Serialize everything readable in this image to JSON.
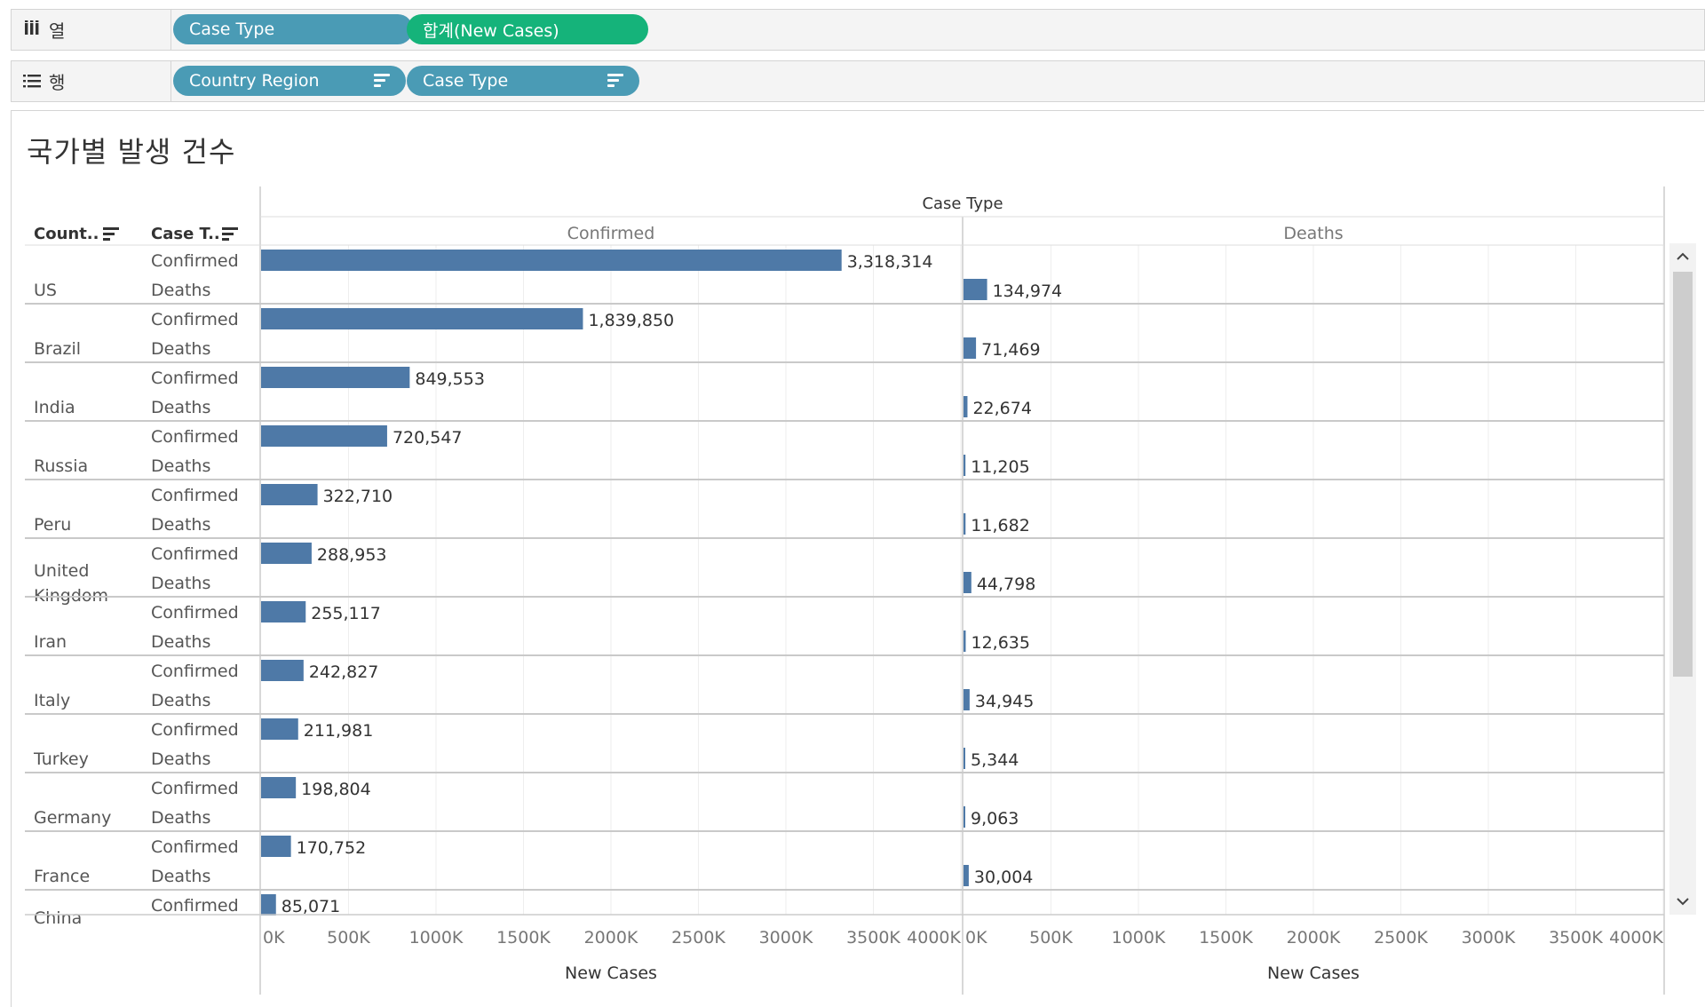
{
  "shelves": {
    "columns": {
      "label": "열",
      "pills": [
        "Case Type",
        "합계(New Cases)"
      ]
    },
    "rows": {
      "label": "행",
      "pills": [
        "Country Region",
        "Case Type"
      ]
    }
  },
  "title": "국가별 발생 건수",
  "headers": {
    "col_country": "Count..",
    "col_casetype": "Case T..",
    "case_type_title": "Case Type",
    "confirmed": "Confirmed",
    "deaths": "Deaths"
  },
  "chart_data": {
    "type": "bar",
    "orientation": "horizontal",
    "title": "국가별 발생 건수",
    "xlabel": "New Cases",
    "xlim": [
      0,
      4000000
    ],
    "ticks": [
      "0K",
      "500K",
      "1000K",
      "1500K",
      "2000K",
      "2500K",
      "3000K",
      "3500K",
      "4000K"
    ],
    "bar_color": "#4e79a7",
    "panes": [
      "Confirmed",
      "Deaths"
    ],
    "countries": [
      {
        "name": "US",
        "confirmed": 3318314,
        "deaths": 134974,
        "confirmed_label": "3,318,314",
        "deaths_label": "134,974"
      },
      {
        "name": "Brazil",
        "confirmed": 1839850,
        "deaths": 71469,
        "confirmed_label": "1,839,850",
        "deaths_label": "71,469"
      },
      {
        "name": "India",
        "confirmed": 849553,
        "deaths": 22674,
        "confirmed_label": "849,553",
        "deaths_label": "22,674"
      },
      {
        "name": "Russia",
        "confirmed": 720547,
        "deaths": 11205,
        "confirmed_label": "720,547",
        "deaths_label": "11,205"
      },
      {
        "name": "Peru",
        "confirmed": 322710,
        "deaths": 11682,
        "confirmed_label": "322,710",
        "deaths_label": "11,682"
      },
      {
        "name": "United Kingdom",
        "lines": [
          "United",
          "Kingdom"
        ],
        "confirmed": 288953,
        "deaths": 44798,
        "confirmed_label": "288,953",
        "deaths_label": "44,798"
      },
      {
        "name": "Iran",
        "confirmed": 255117,
        "deaths": 12635,
        "confirmed_label": "255,117",
        "deaths_label": "12,635"
      },
      {
        "name": "Italy",
        "confirmed": 242827,
        "deaths": 34945,
        "confirmed_label": "242,827",
        "deaths_label": "34,945"
      },
      {
        "name": "Turkey",
        "confirmed": 211981,
        "deaths": 5344,
        "confirmed_label": "211,981",
        "deaths_label": "5,344"
      },
      {
        "name": "Germany",
        "confirmed": 198804,
        "deaths": 9063,
        "confirmed_label": "198,804",
        "deaths_label": "9,063"
      },
      {
        "name": "France",
        "confirmed": 170752,
        "deaths": 30004,
        "confirmed_label": "170,752",
        "deaths_label": "30,004"
      },
      {
        "name": "China",
        "confirmed": 85071,
        "deaths": null,
        "confirmed_label": "85,071",
        "deaths_label": null,
        "partial": true
      }
    ]
  }
}
